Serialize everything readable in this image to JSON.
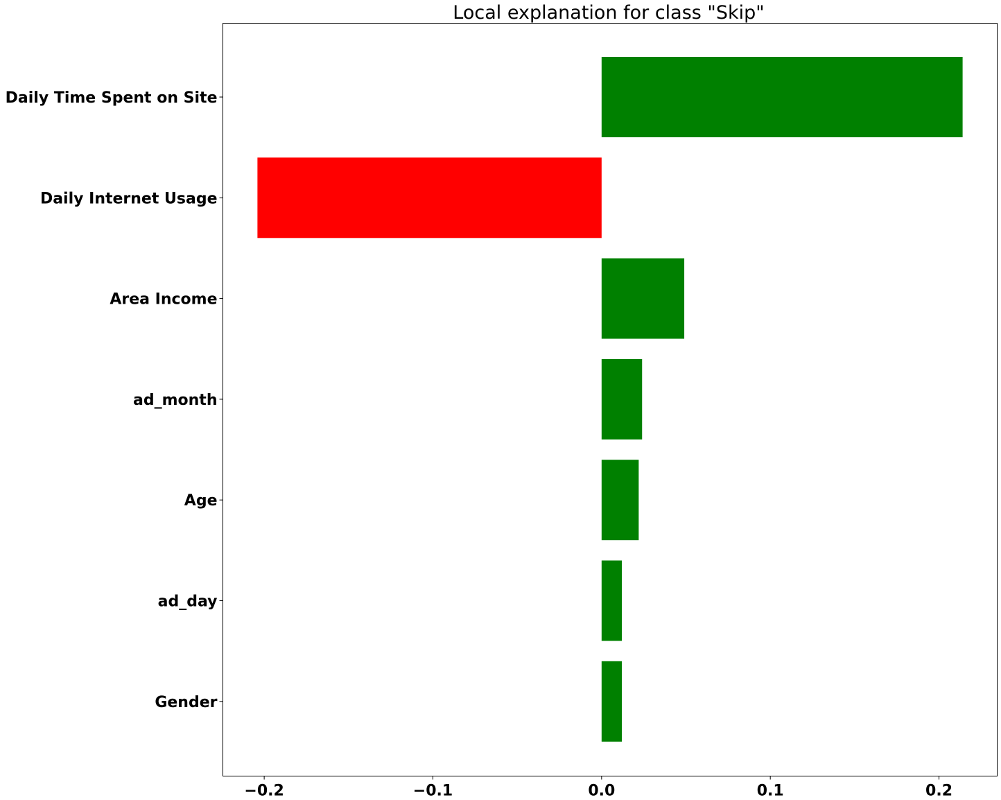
{
  "chart_data": {
    "type": "bar",
    "orientation": "horizontal",
    "title": "Local explanation for class \"Skip\"",
    "xlabel": "",
    "ylabel": "",
    "categories": [
      "Daily Time Spent on Site",
      "Daily Internet Usage",
      "Area Income",
      "ad_month",
      "Age",
      "ad_day",
      "Gender"
    ],
    "values": [
      0.214,
      -0.204,
      0.049,
      0.024,
      0.022,
      0.012,
      0.012
    ],
    "xlim": [
      -0.2245,
      0.2345
    ],
    "xticks": [
      -0.2,
      -0.1,
      0.0,
      0.1,
      0.2
    ],
    "xtick_labels": [
      "−0.2",
      "−0.1",
      "0.0",
      "0.1",
      "0.2"
    ],
    "colors": {
      "positive": "#008000",
      "negative": "#ff0000"
    },
    "grid": false,
    "legend": "none"
  }
}
